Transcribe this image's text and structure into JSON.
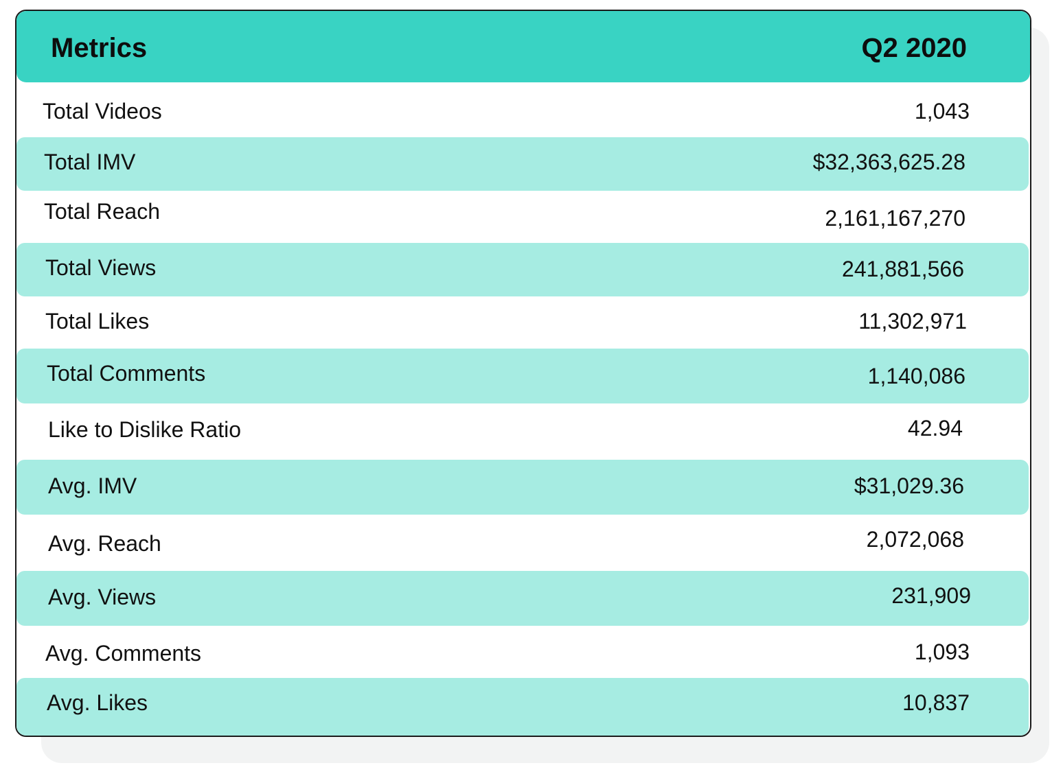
{
  "chart_data": {
    "type": "table",
    "columns": [
      "Metrics",
      "Q2 2020"
    ],
    "rows": [
      {
        "metric": "Total Videos",
        "value": "1,043"
      },
      {
        "metric": "Total IMV",
        "value": "$32,363,625.28"
      },
      {
        "metric": "Total Reach",
        "value": "2,161,167,270"
      },
      {
        "metric": "Total Views",
        "value": "241,881,566"
      },
      {
        "metric": "Total Likes",
        "value": "11,302,971"
      },
      {
        "metric": "Total Comments",
        "value": "1,140,086"
      },
      {
        "metric": "Like to Dislike Ratio",
        "value": "42.94"
      },
      {
        "metric": "Avg. IMV",
        "value": "$31,029.36"
      },
      {
        "metric": "Avg. Reach",
        "value": "2,072,068"
      },
      {
        "metric": "Avg. Views",
        "value": "231,909"
      },
      {
        "metric": "Avg. Comments",
        "value": "1,093"
      },
      {
        "metric": "Avg. Likes",
        "value": "10,837"
      }
    ],
    "colors": {
      "header": "#39d3c3",
      "shaded_row": "#a6ece2",
      "border": "#1a1a1a"
    }
  }
}
